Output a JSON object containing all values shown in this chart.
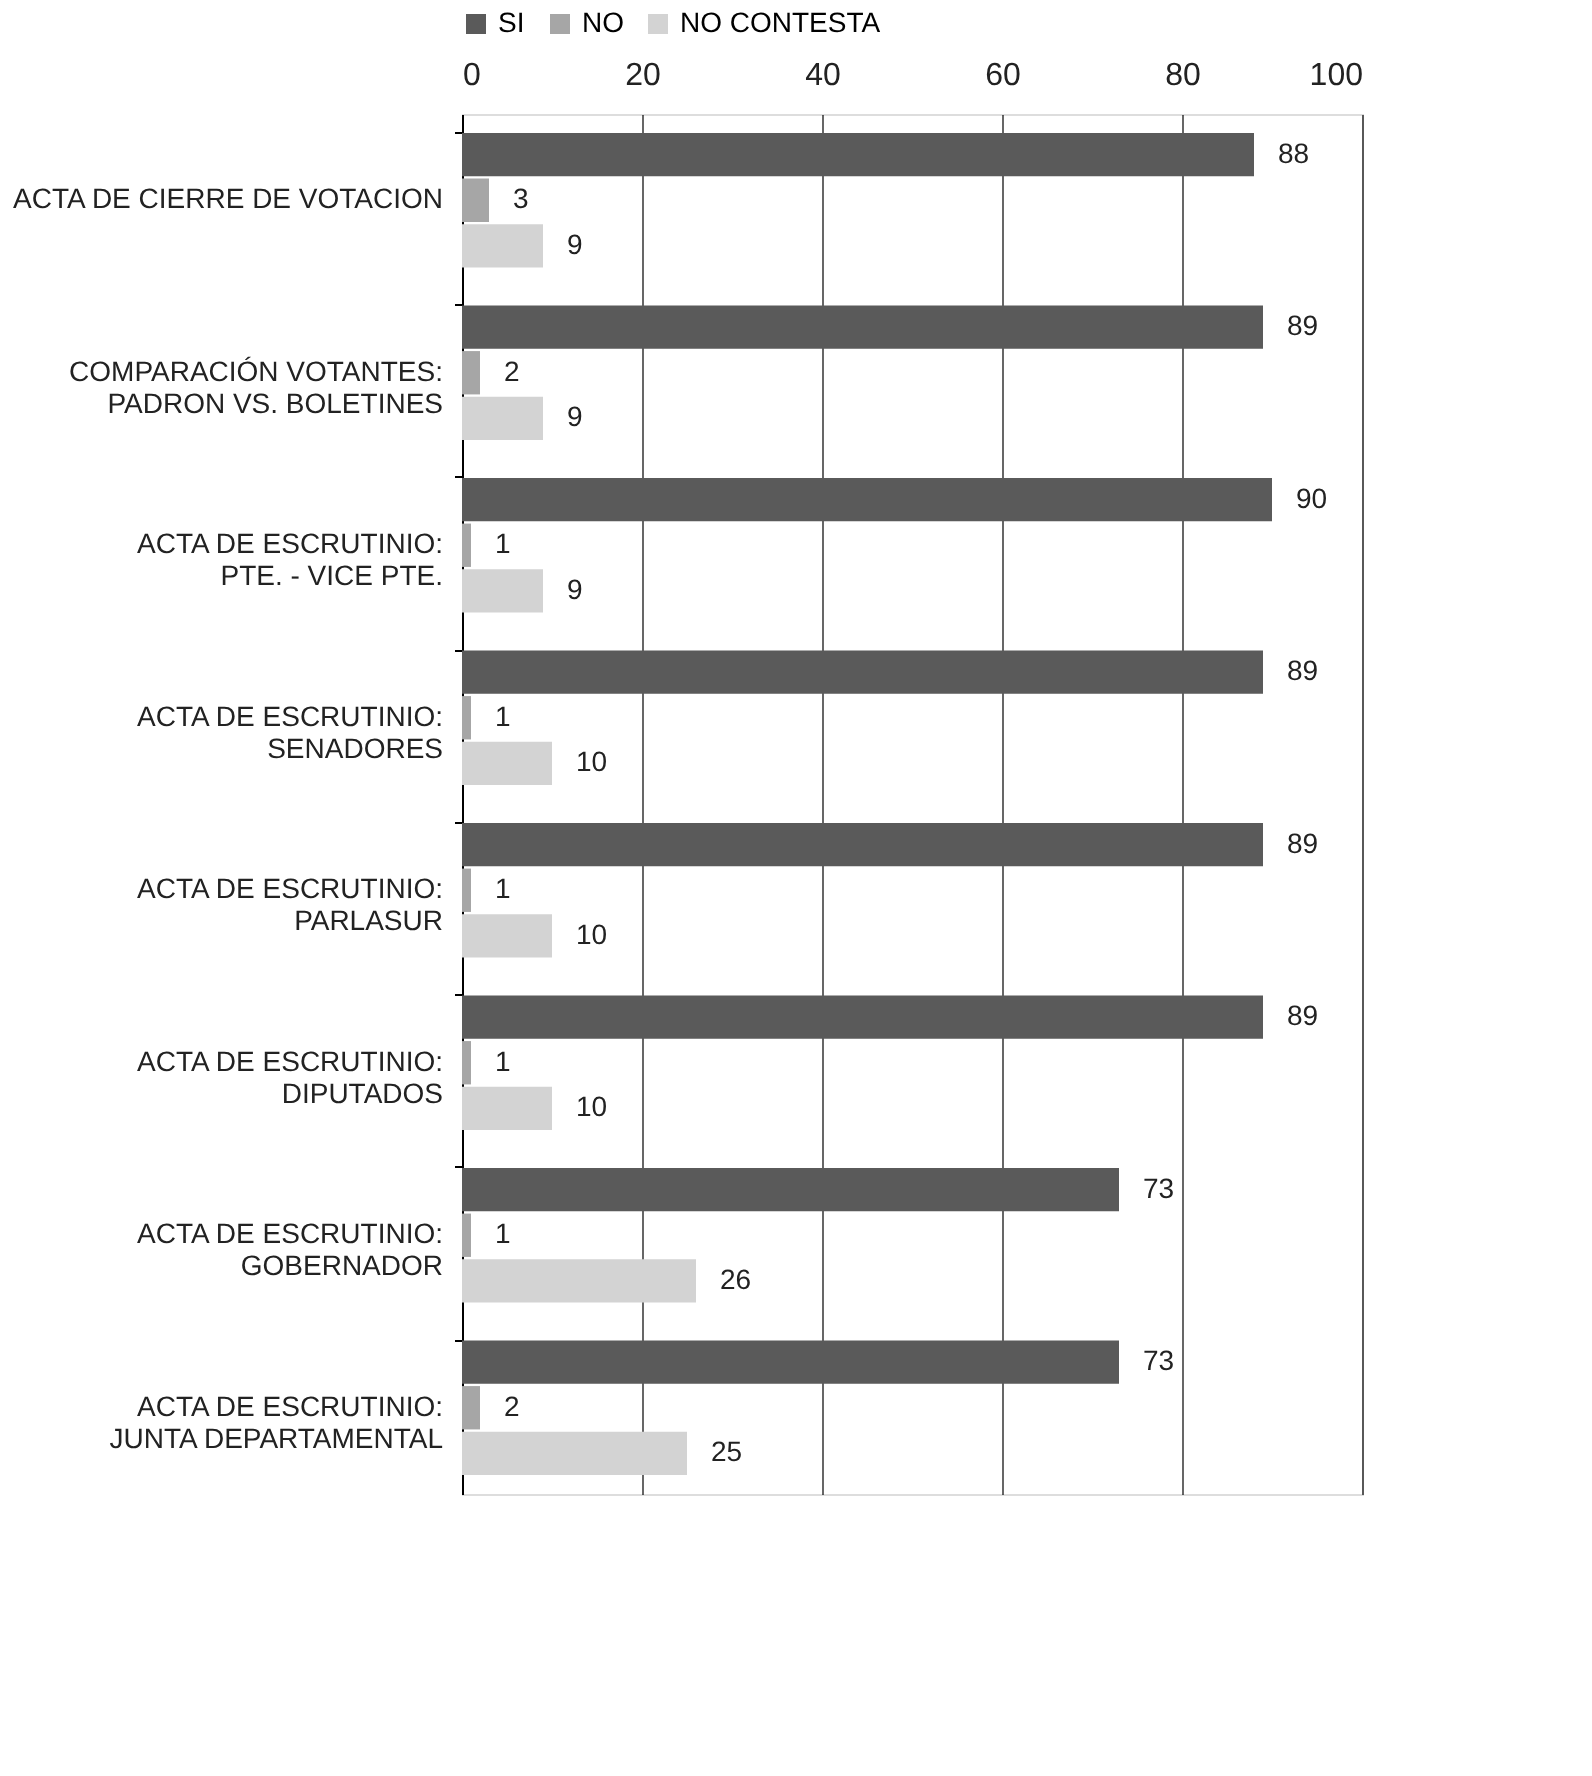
{
  "chart_data": {
    "type": "bar",
    "orientation": "horizontal",
    "categories": [
      "ACTA DE CIERRE DE VOTACION",
      "COMPARACIÓN VOTANTES:\nPADRON VS. BOLETINES",
      "ACTA DE ESCRUTINIO:\nPTE. - VICE PTE.",
      "ACTA DE ESCRUTINIO:\nSENADORES",
      "ACTA DE ESCRUTINIO:\nPARLASUR",
      "ACTA DE ESCRUTINIO:\nDIPUTADOS",
      "ACTA DE ESCRUTINIO:\nGOBERNADOR",
      "ACTA DE ESCRUTINIO:\nJUNTA DEPARTAMENTAL"
    ],
    "series": [
      {
        "name": "SI",
        "color": "#5a5a5a",
        "values": [
          88,
          89,
          90,
          89,
          89,
          89,
          73,
          73
        ]
      },
      {
        "name": "NO",
        "color": "#a6a6a6",
        "values": [
          3,
          2,
          1,
          1,
          1,
          1,
          1,
          2
        ]
      },
      {
        "name": "NO CONTESTA",
        "color": "#d3d3d3",
        "values": [
          9,
          9,
          9,
          10,
          10,
          10,
          26,
          25
        ]
      }
    ],
    "xlim": [
      0,
      100
    ],
    "xticks": [
      0,
      20,
      40,
      60,
      80,
      100
    ],
    "grid": "x",
    "legend": "top left",
    "data_labels": true
  }
}
